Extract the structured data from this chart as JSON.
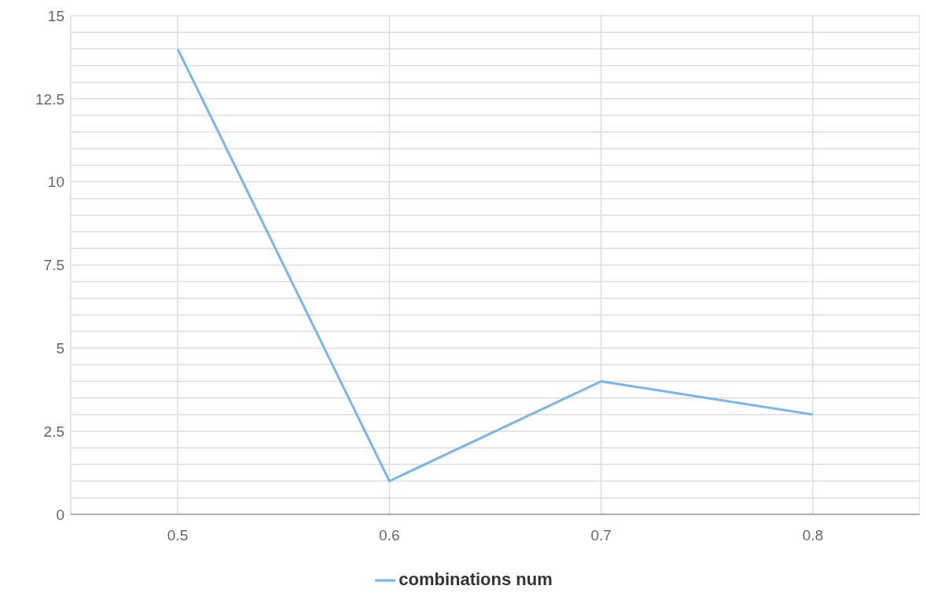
{
  "chart_data": {
    "type": "line",
    "categories": [
      "0.5",
      "0.6",
      "0.7",
      "0.8"
    ],
    "series": [
      {
        "name": "combinations num",
        "color": "#7cb5ec",
        "values": [
          14,
          1,
          4,
          3
        ]
      }
    ],
    "ylim": [
      0,
      15
    ],
    "yticks": [
      0,
      {
        "value": 0.5,
        "label": null
      },
      {
        "value": 1,
        "label": null
      },
      {
        "value": 1.5,
        "label": null
      },
      {
        "value": 2,
        "label": null
      },
      2.5,
      {
        "value": 3,
        "label": null
      },
      {
        "value": 3.5,
        "label": null
      },
      {
        "value": 4,
        "label": null
      },
      {
        "value": 4.5,
        "label": null
      },
      5,
      {
        "value": 5.5,
        "label": null
      },
      {
        "value": 6,
        "label": null
      },
      {
        "value": 6.5,
        "label": null
      },
      {
        "value": 7,
        "label": null
      },
      7.5,
      {
        "value": 8,
        "label": null
      },
      {
        "value": 8.5,
        "label": null
      },
      {
        "value": 9,
        "label": null
      },
      {
        "value": 9.5,
        "label": null
      },
      10,
      {
        "value": 10.5,
        "label": null
      },
      {
        "value": 11,
        "label": null
      },
      {
        "value": 11.5,
        "label": null
      },
      {
        "value": 12,
        "label": null
      },
      12.5,
      {
        "value": 13,
        "label": null
      },
      {
        "value": 13.5,
        "label": null
      },
      {
        "value": 14,
        "label": null
      },
      {
        "value": 14.5,
        "label": null
      },
      15
    ],
    "grid": true,
    "legend": "bottom",
    "marker": "none",
    "line_style": "solid"
  }
}
